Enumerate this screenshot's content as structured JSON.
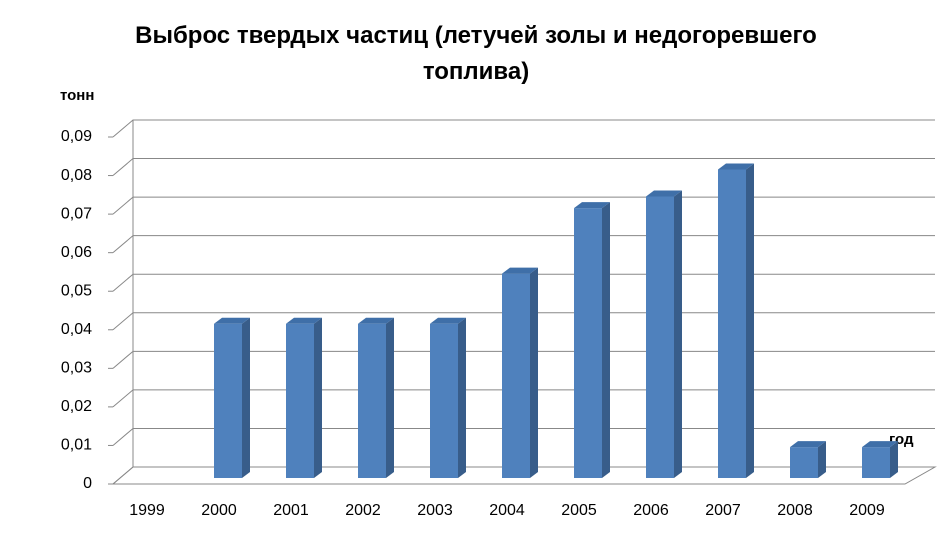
{
  "chart_data": {
    "type": "bar3d",
    "title": "Выброс твердых частиц (летучей золы и недогоревшего топлива)",
    "y_label": "тонн",
    "x_label": "год",
    "categories": [
      "1999",
      "2000",
      "2001",
      "2002",
      "2003",
      "2004",
      "2005",
      "2006",
      "2007",
      "2008",
      "2009"
    ],
    "values": [
      0,
      0.04,
      0.04,
      0.04,
      0.04,
      0.053,
      0.07,
      0.073,
      0.08,
      0.008,
      0.008
    ],
    "color": "#4f81bd",
    "ylim": [
      0,
      0.09
    ],
    "yticks": [
      0,
      {
        "value": 0.01,
        "label": "0,01"
      },
      {
        "value": 0.02,
        "label": "0,02"
      },
      {
        "value": 0.03,
        "label": "0,03"
      },
      {
        "value": 0.04,
        "label": "0,04"
      },
      {
        "value": 0.05,
        "label": "0,05"
      },
      {
        "value": 0.06,
        "label": "0,06"
      },
      {
        "value": 0.07,
        "label": "0,07"
      },
      {
        "value": 0.08,
        "label": "0,08"
      },
      {
        "value": 0.09,
        "label": "0,09"
      }
    ],
    "grid": true
  }
}
